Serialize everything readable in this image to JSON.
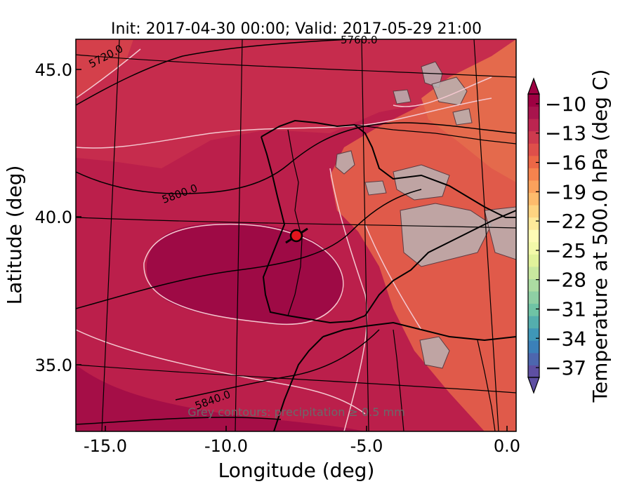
{
  "title": "Init: 2017-04-30 00:00; Valid: 2017-05-29 21:00",
  "map": {
    "xlabel": "Longitude (deg)",
    "ylabel": "Latitude (deg)",
    "x_ticks": [
      "-15.0",
      "-10.0",
      "-5.0",
      "0.0"
    ],
    "y_ticks": [
      "45.0",
      "40.0",
      "35.0"
    ],
    "contour_labels": [
      "5720.0",
      "5760.0",
      "5800.0",
      "5840.0"
    ],
    "note": "Grey contours: precipitation ≥ 0.5 mm",
    "marker": {
      "lon": -7.6,
      "lat": 39.3,
      "color": "#e2151d"
    },
    "colors": {
      "warmest": "#9e0a45",
      "warm": "#bb1f4b",
      "mid": "#d4404b",
      "cooler": "#e05a4a",
      "precip_grey": "#b9b1b3",
      "coast": "#000000",
      "isotherm": "#f4c7cf"
    }
  },
  "colorbar": {
    "label": "Temperature at 500.0 hPa (deg C)",
    "ticks": [
      "−10",
      "−13",
      "−16",
      "−19",
      "−22",
      "−25",
      "−28",
      "−31",
      "−34",
      "−37"
    ],
    "min": -38,
    "max": -9,
    "colors": [
      "#5e4fa2",
      "#4d66ae",
      "#3b80b9",
      "#3f97b7",
      "#54aead",
      "#6fc3a5",
      "#8ecfa4",
      "#acdca2",
      "#c8e89f",
      "#e1f29b",
      "#f3f9a9",
      "#fefbb5",
      "#fee99a",
      "#fed481",
      "#fdbb6c",
      "#fba15c",
      "#f6834e",
      "#ec6746",
      "#de4f4a",
      "#cd3a4e",
      "#bc2550",
      "#a8144d",
      "#9e0142"
    ]
  }
}
